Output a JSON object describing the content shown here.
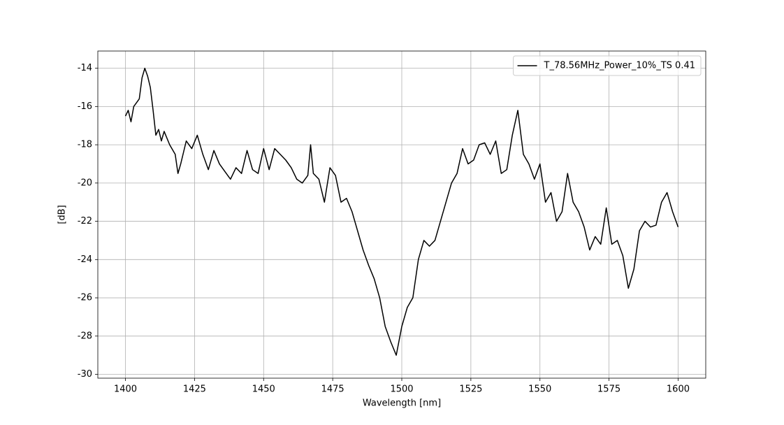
{
  "chart_data": {
    "type": "line",
    "xlabel": "Wavelength [nm]",
    "ylabel": "[dB]",
    "x": [
      1400,
      1401,
      1402,
      1403,
      1404,
      1405,
      1406,
      1407,
      1408,
      1409,
      1410,
      1411,
      1412,
      1413,
      1414,
      1416,
      1418,
      1419,
      1420,
      1422,
      1424,
      1426,
      1428,
      1430,
      1432,
      1434,
      1436,
      1438,
      1440,
      1442,
      1444,
      1446,
      1448,
      1450,
      1452,
      1454,
      1456,
      1458,
      1460,
      1462,
      1464,
      1466,
      1467,
      1468,
      1470,
      1472,
      1474,
      1476,
      1478,
      1480,
      1482,
      1484,
      1486,
      1488,
      1490,
      1492,
      1494,
      1496,
      1498,
      1500,
      1502,
      1504,
      1506,
      1508,
      1510,
      1512,
      1514,
      1516,
      1518,
      1520,
      1522,
      1524,
      1526,
      1528,
      1530,
      1532,
      1534,
      1536,
      1538,
      1540,
      1542,
      1544,
      1546,
      1548,
      1550,
      1552,
      1554,
      1556,
      1558,
      1560,
      1562,
      1564,
      1566,
      1568,
      1570,
      1572,
      1574,
      1576,
      1578,
      1580,
      1582,
      1584,
      1586,
      1588,
      1590,
      1592,
      1594,
      1596,
      1598,
      1600
    ],
    "series": [
      {
        "name": "T_78.56MHz_Power_10%_TS 0.41",
        "color": "#000000",
        "values": [
          -16.5,
          -16.2,
          -16.8,
          -16.0,
          -15.8,
          -15.6,
          -14.5,
          -14.0,
          -14.4,
          -15.0,
          -16.2,
          -17.5,
          -17.2,
          -17.8,
          -17.3,
          -18.0,
          -18.5,
          -19.5,
          -19.0,
          -17.8,
          -18.2,
          -17.5,
          -18.5,
          -19.3,
          -18.3,
          -19.0,
          -19.4,
          -19.8,
          -19.2,
          -19.5,
          -18.3,
          -19.3,
          -19.5,
          -18.2,
          -19.3,
          -18.2,
          -18.5,
          -18.8,
          -19.2,
          -19.8,
          -20.0,
          -19.6,
          -18.0,
          -19.5,
          -19.8,
          -21.0,
          -19.2,
          -19.6,
          -21.0,
          -20.8,
          -21.5,
          -22.5,
          -23.5,
          -24.3,
          -25.0,
          -26.0,
          -27.5,
          -28.3,
          -29.0,
          -27.5,
          -26.5,
          -26.0,
          -24.0,
          -23.0,
          -23.3,
          -23.0,
          -22.0,
          -21.0,
          -20.0,
          -19.5,
          -18.2,
          -19.0,
          -18.8,
          -18.0,
          -17.9,
          -18.5,
          -17.8,
          -19.5,
          -19.3,
          -17.5,
          -16.2,
          -18.5,
          -19.0,
          -19.8,
          -19.0,
          -21.0,
          -20.5,
          -22.0,
          -21.5,
          -19.5,
          -21.0,
          -21.5,
          -22.3,
          -23.5,
          -22.8,
          -23.2,
          -21.3,
          -23.2,
          -23.0,
          -23.8,
          -25.5,
          -24.5,
          -22.5,
          -22.0,
          -22.3,
          -22.2,
          -21.0,
          -20.5,
          -21.5,
          -22.3
        ]
      }
    ],
    "xlim": [
      1390,
      1610
    ],
    "xticks": [
      1400,
      1425,
      1450,
      1475,
      1500,
      1525,
      1550,
      1575,
      1600
    ],
    "ylim": [
      -30.2,
      -13.1
    ],
    "yticks": [
      -30,
      -28,
      -26,
      -24,
      -22,
      -20,
      -18,
      -16,
      -14
    ],
    "grid": true,
    "legend": "upper right"
  }
}
